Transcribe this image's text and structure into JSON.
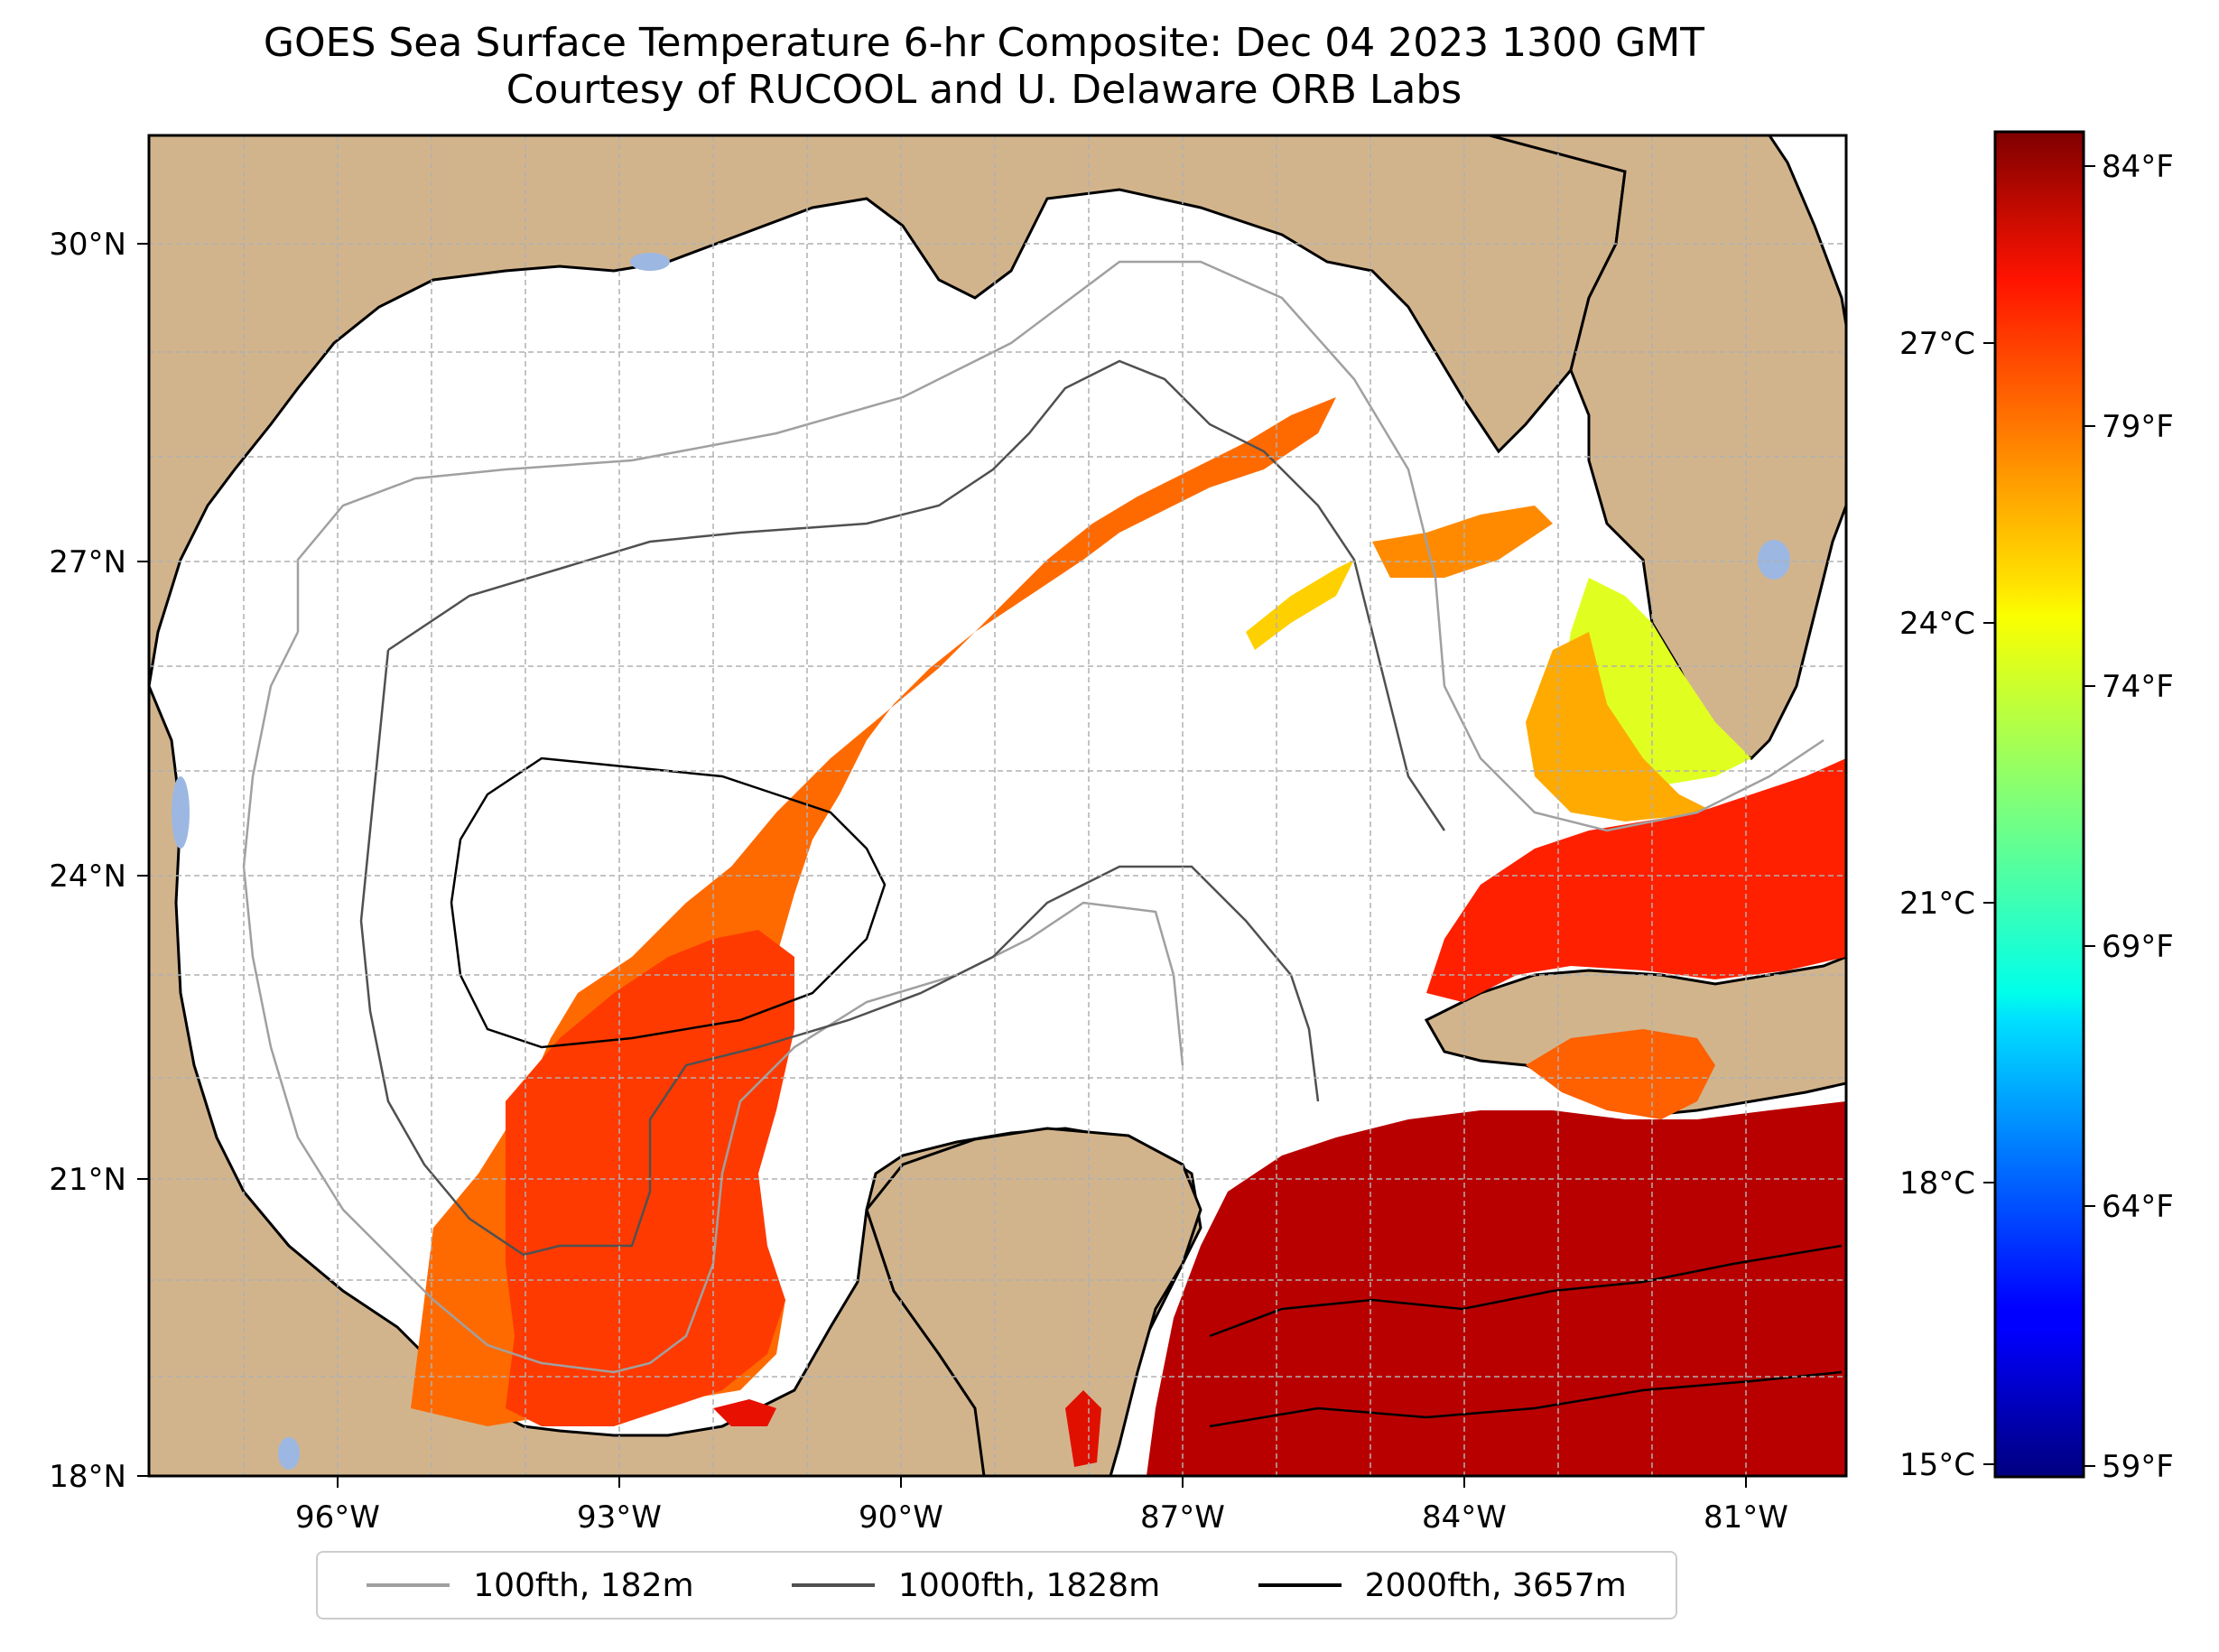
{
  "title": {
    "line1": "GOES Sea Surface Temperature 6-hr Composite: Dec 04 2023 1300 GMT",
    "line2": "Courtesy of RUCOOL and U. Delaware ORB Labs"
  },
  "map": {
    "land_color": "#d2b48c",
    "ocean_color": "#ffffff",
    "lake_color": "#9cb7e2",
    "lat_labels": [
      "30°N",
      "27°N",
      "24°N",
      "21°N",
      "18°N"
    ],
    "lon_labels": [
      "96°W",
      "93°W",
      "90°W",
      "87°W",
      "84°W",
      "81°W"
    ]
  },
  "colorbar": {
    "colormap": "jet",
    "celsius_labels": [
      "27°C",
      "24°C",
      "21°C",
      "18°C",
      "15°C"
    ],
    "fahrenheit_labels": [
      "84°F",
      "79°F",
      "74°F",
      "69°F",
      "64°F",
      "59°F"
    ],
    "range_celsius": [
      15,
      29
    ]
  },
  "legend": {
    "items": [
      {
        "label": "100fth, 182m",
        "color": "#a0a0a0"
      },
      {
        "label": "1000fth, 1828m",
        "color": "#505050"
      },
      {
        "label": "2000fth, 3657m",
        "color": "#000000"
      }
    ]
  }
}
